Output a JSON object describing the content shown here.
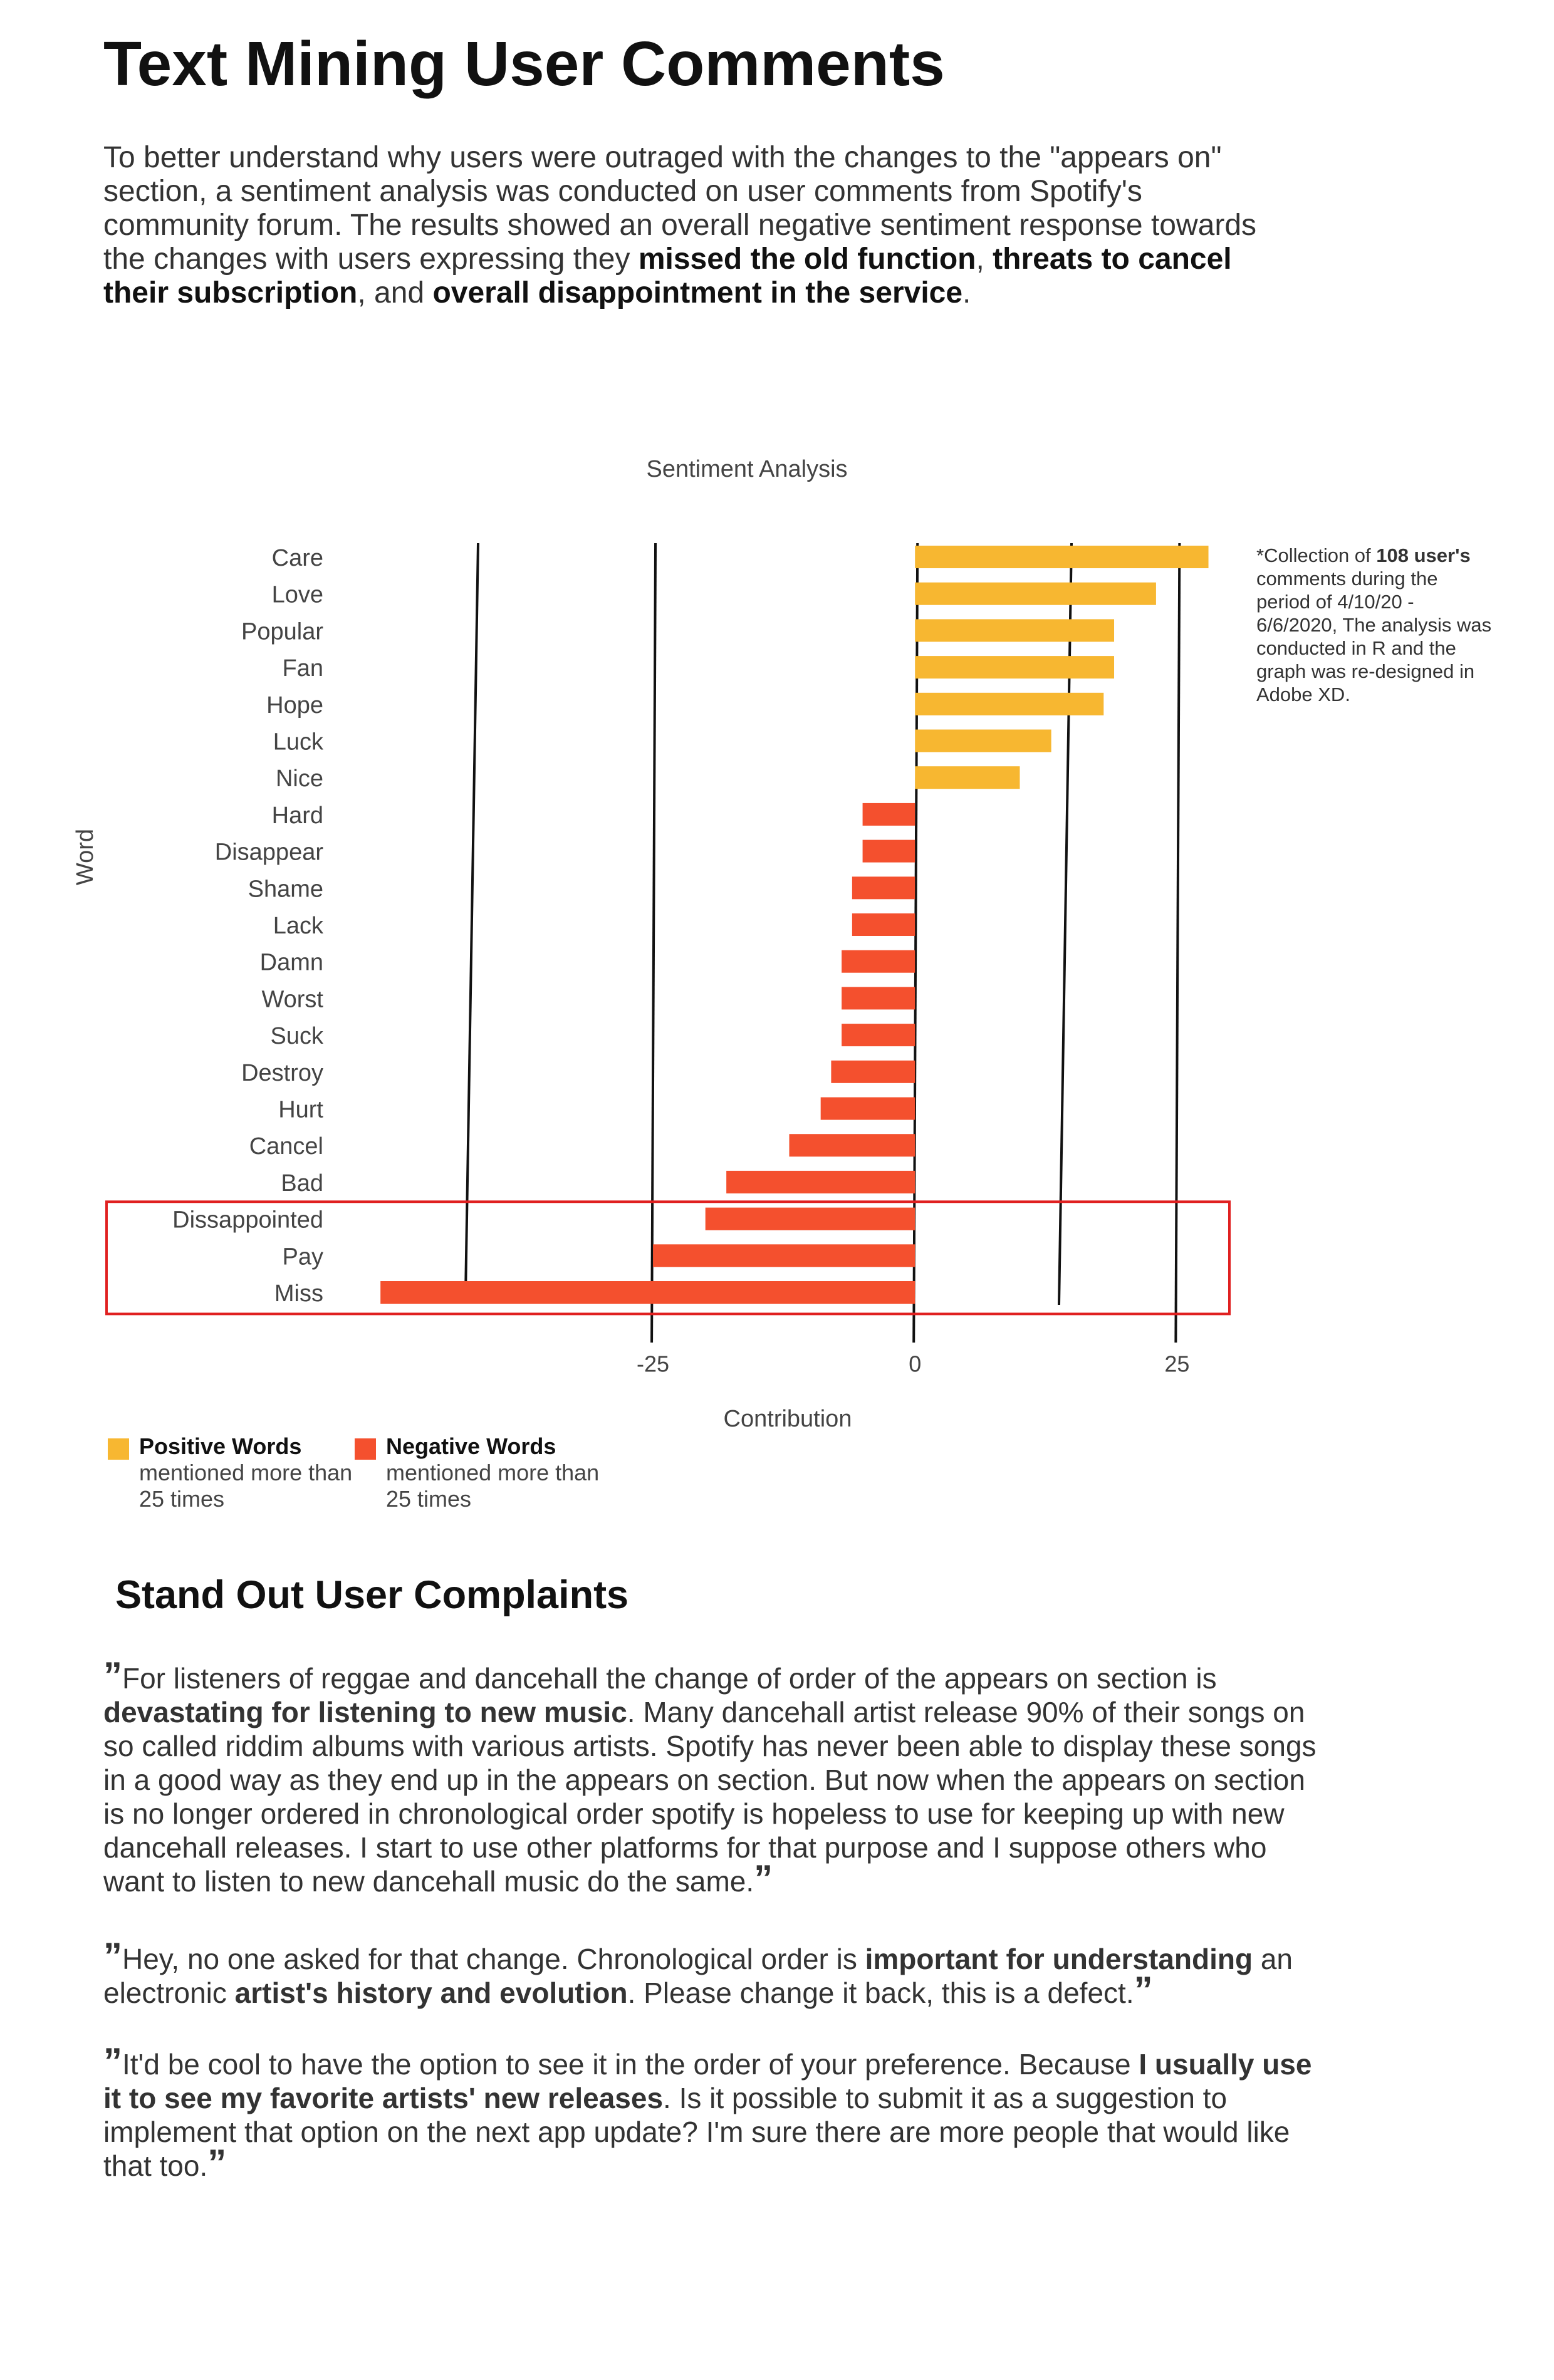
{
  "header": {
    "title": "Text Mining User Comments"
  },
  "intro": [
    {
      "text": "To better understand why users were outraged with the changes to the \"appears on\" section, a sentiment analysis was conducted on user comments from Spotify's community forum. The results showed an overall negative sentiment response towards the changes with users expressing they ",
      "bold": false
    },
    {
      "text": "missed the old function",
      "bold": true
    },
    {
      "text": ", ",
      "bold": false
    },
    {
      "text": "threats to cancel their subscription",
      "bold": true
    },
    {
      "text": ", and ",
      "bold": false
    },
    {
      "text": "overall disappointment in the service",
      "bold": true
    },
    {
      "text": ".",
      "bold": false
    }
  ],
  "chart_data": {
    "type": "bar",
    "orientation": "horizontal",
    "title": "Sentiment Analysis",
    "x_label": "Contribution",
    "y_label": "Word",
    "categories": [
      "Care",
      "Love",
      "Popular",
      "Fan",
      "Hope",
      "Luck",
      "Nice",
      "Hard",
      "Disappear",
      "Shame",
      "Lack",
      "Damn",
      "Worst",
      "Suck",
      "Destroy",
      "Hurt",
      "Cancel",
      "Bad",
      "Dissappointed",
      "Pay",
      "Miss"
    ],
    "values": [
      28,
      23,
      19,
      19,
      18,
      13,
      10,
      -5,
      -5,
      -6,
      -6,
      -7,
      -7,
      -7,
      -8,
      -9,
      -12,
      -18,
      -20,
      -25,
      -51
    ],
    "xlim": [
      -54,
      30
    ],
    "xticks": [
      -25,
      0,
      25
    ],
    "grid": true,
    "positive_color": "#f7b731",
    "negative_color": "#f4502e",
    "legend": [
      {
        "name": "Positive Words",
        "note": "mentioned more than 25 times",
        "color": "#f7b731"
      },
      {
        "name": "Negative Words",
        "note": "mentioned more than 25 times",
        "color": "#f4502e"
      }
    ],
    "note": [
      {
        "text": "*Collection of ",
        "bold": false
      },
      {
        "text": "108 user's",
        "bold": true
      },
      {
        "text": " comments during the period of 4/10/20 - 6/6/2020, The analysis was conducted in R and the graph was re-designed in Adobe XD.",
        "bold": false
      }
    ]
  },
  "complaints": {
    "heading": "Stand Out User Complaints",
    "quotes": [
      [
        {
          "text": "”",
          "bold": true
        },
        {
          "text": "For listeners of reggae and dancehall the change of order of the appears on section is ",
          "bold": false
        },
        {
          "text": "devastating for listening to new music",
          "bold": true
        },
        {
          "text": ". Many dancehall artist release 90% of their songs on so called riddim albums with various artists. Spotify has never been able to display these songs in a good way as they end up in the appears on section. But now when the appears on section is no longer ordered in chronological order spotify is hopeless to use for keeping up with new dancehall releases. I start to use other platforms for that purpose and I suppose others who want to listen to new dancehall music do the same.",
          "bold": false
        },
        {
          "text": "”",
          "bold": true
        }
      ],
      [
        {
          "text": "”",
          "bold": true
        },
        {
          "text": "Hey, no one asked for that change. Chronological order is ",
          "bold": false
        },
        {
          "text": "important for understanding",
          "bold": true
        },
        {
          "text": " an electronic ",
          "bold": false
        },
        {
          "text": "artist's history and evolution",
          "bold": true
        },
        {
          "text": ". Please change it back, this is a defect.",
          "bold": false
        },
        {
          "text": "”",
          "bold": true
        }
      ],
      [
        {
          "text": "”",
          "bold": true
        },
        {
          "text": "It'd be cool to have the option to see it in the order of your preference. Because ",
          "bold": false
        },
        {
          "text": "I usually use it to see my favorite artists' new releases",
          "bold": true
        },
        {
          "text": ". Is it possible to submit it as a suggestion to implement that option on the next app update? I'm sure there are more people that would like that too.",
          "bold": false
        },
        {
          "text": "”",
          "bold": true
        }
      ]
    ]
  }
}
